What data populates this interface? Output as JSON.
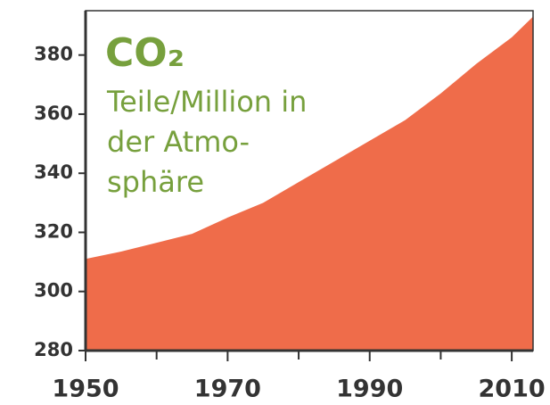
{
  "chart_data": {
    "type": "area",
    "title": "CO₂",
    "subtitle": [
      "Teile/Million in",
      "der Atmo-",
      "sphäre"
    ],
    "x": [
      1950,
      1955,
      1960,
      1965,
      1970,
      1975,
      1980,
      1985,
      1990,
      1995,
      2000,
      2005,
      2010,
      2013
    ],
    "values": [
      311,
      313.5,
      316.5,
      319.5,
      325,
      330,
      337,
      344,
      351,
      358,
      367,
      377,
      386,
      393
    ],
    "color": "#ef6c4a",
    "text_color": "#77a03d",
    "xlim": [
      1950,
      2013
    ],
    "ylim": [
      280,
      395
    ],
    "xticks": [
      1950,
      1970,
      1990,
      2010
    ],
    "xminorticks": [
      1960,
      1980,
      2000
    ],
    "yticks": [
      280,
      300,
      320,
      340,
      360,
      380
    ]
  }
}
